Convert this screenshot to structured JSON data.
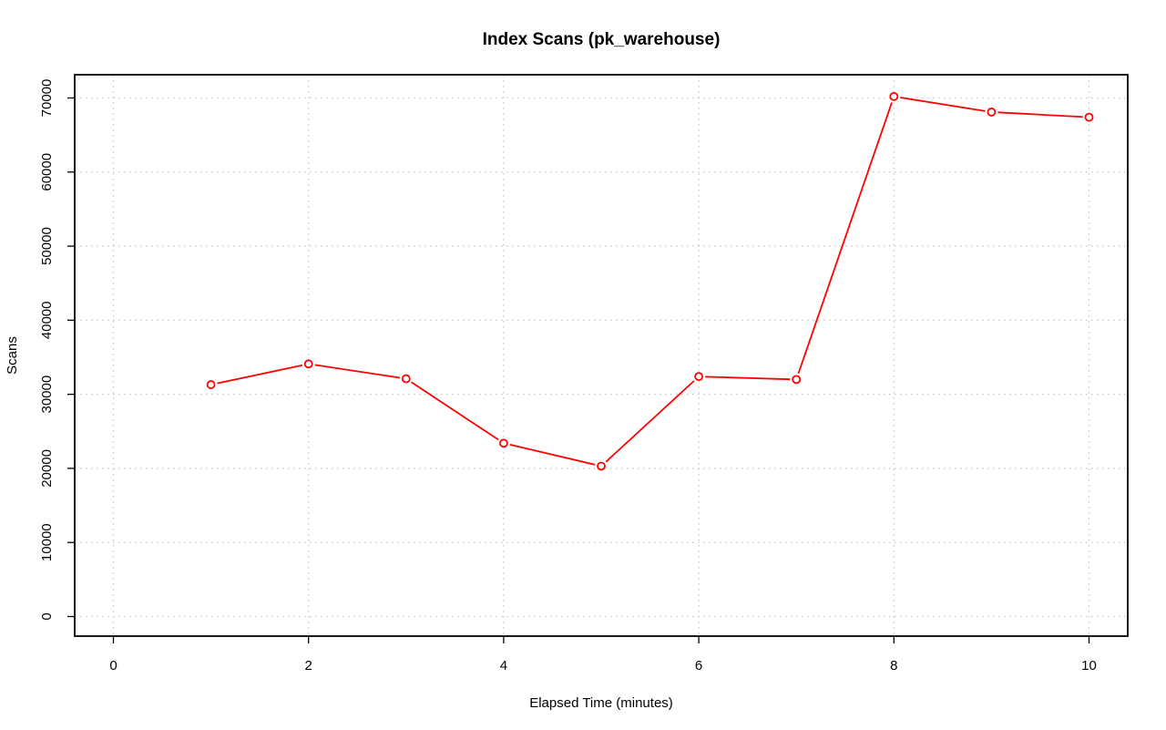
{
  "chart_data": {
    "type": "line",
    "title": "Index Scans (pk_warehouse)",
    "xlabel": "Elapsed Time (minutes)",
    "ylabel": "Scans",
    "xlim": [
      0,
      10
    ],
    "ylim": [
      0,
      70000
    ],
    "xticks": [
      0,
      2,
      4,
      6,
      8,
      10
    ],
    "yticks": [
      0,
      10000,
      20000,
      30000,
      40000,
      50000,
      60000,
      70000
    ],
    "grid": true,
    "legend": "none",
    "series": [
      {
        "color": "#ff0000",
        "marker": "open-circle",
        "x": [
          1,
          2,
          3,
          4,
          5,
          6,
          7,
          8,
          9,
          10
        ],
        "y": [
          31300,
          34100,
          32100,
          23400,
          20300,
          32400,
          32000,
          70200,
          68100,
          67400
        ]
      }
    ]
  }
}
